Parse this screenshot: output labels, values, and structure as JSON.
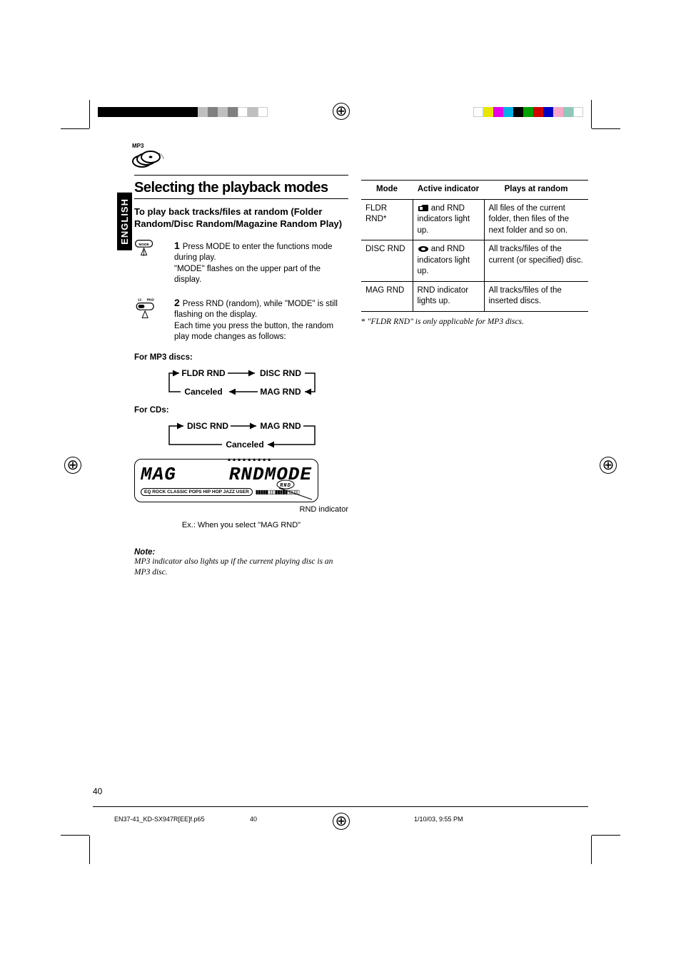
{
  "sidetab": "ENGLISH",
  "pageNumber": "40",
  "topIcon": {
    "label": "MP3"
  },
  "heading": "Selecting the playback modes",
  "subheading": "To play back tracks/files at random (Folder Random/Disc Random/Magazine Random Play)",
  "steps": [
    {
      "num": "1",
      "lines": [
        "Press MODE to enter the functions mode during play.",
        "\"MODE\" flashes on the upper part of the display."
      ]
    },
    {
      "num": "2",
      "lines": [
        "Press RND (random), while \"MODE\" is still flashing on the display.",
        "Each time you press the button, the random play mode changes as follows:"
      ]
    }
  ],
  "mp3Label": "For MP3 discs:",
  "cycleMp3": [
    "FLDR RND",
    "DISC RND",
    "MAG RND",
    "Canceled"
  ],
  "cdLabel": "For CDs:",
  "cycleCd": [
    "DISC RND",
    "MAG RND",
    "Canceled"
  ],
  "lcd": {
    "left": "MAG",
    "right": "RNDMODE",
    "rndBadge": "RND",
    "eqRow": "ROCK  CLASSIC  POPS  HIP HOP  JAZZ  USER",
    "eqLabel": "EQ"
  },
  "rndIndicator": "RND indicator",
  "exLine": "Ex.: When you select \"MAG RND\"",
  "note": {
    "head": "Note:",
    "body": "MP3 indicator also lights up if the current playing disc is an MP3 disc."
  },
  "table": {
    "headers": [
      "Mode",
      "Active indicator",
      "Plays at random"
    ],
    "rows": [
      {
        "mode": "FLDR RND*",
        "ind_suffix": " and RND indicators light up.",
        "ind_icon": "folder",
        "plays": "All files of the current folder, then files of the next folder and so on."
      },
      {
        "mode": "DISC RND",
        "ind_suffix": " and RND indicators light up.",
        "ind_icon": "disc",
        "plays": "All tracks/files of the current (or specified) disc."
      },
      {
        "mode": "MAG RND",
        "ind_suffix": "RND indicator lights up.",
        "ind_icon": "",
        "plays": "All tracks/files of the inserted discs."
      }
    ]
  },
  "footnote": {
    "star": "*",
    "text": "\"FLDR RND\" is only applicable for MP3 discs."
  },
  "footer": {
    "file": "EN37-41_KD-SX947R[EE]f.p65",
    "page": "40",
    "date": "1/10/03, 9:55 PM"
  },
  "colorbars": {
    "left": [
      "#000",
      "#000",
      "#000",
      "#000",
      "#000",
      "#000",
      "#000",
      "#000",
      "#000",
      "#000",
      "#bfbfbf",
      "#808080",
      "#bfbfbf",
      "#808080",
      "#fff",
      "#bfbfbf",
      "#fff"
    ],
    "right": [
      "#fff",
      "#e6e600",
      "#e600e6",
      "#00b0e6",
      "#000",
      "#00a000",
      "#d00000",
      "#0000c0",
      "#f7a8c8",
      "#8fc8b8",
      "#fff"
    ]
  }
}
